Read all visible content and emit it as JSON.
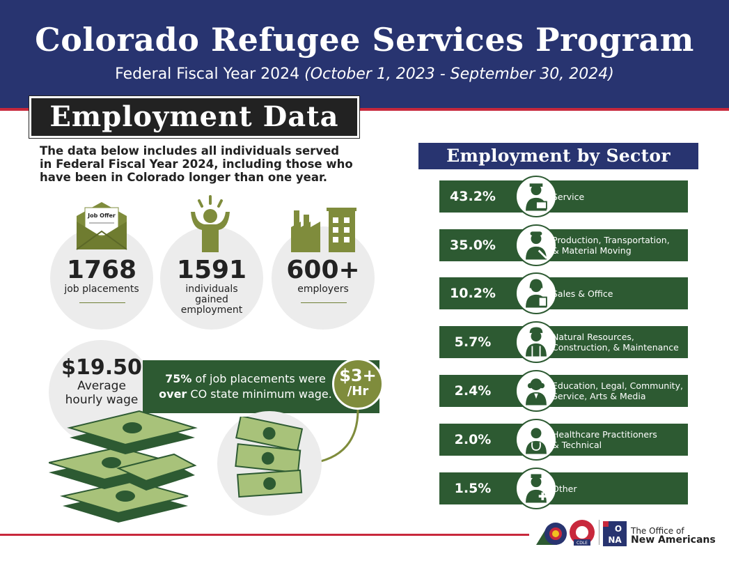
{
  "header": {
    "title": "Colorado Refugee Services Program",
    "subtitle_main": "Federal Fiscal Year 2024 ",
    "subtitle_dates": "(October 1, 2023 - September 30, 2024)"
  },
  "section_tag": "Employment Data",
  "intro_lines": [
    "The data below includes all individuals served",
    "in Federal Fiscal Year 2024, including those who",
    "have been in Colorado longer than one year."
  ],
  "stats": [
    {
      "value": "1768",
      "label_lines": [
        "job placements"
      ],
      "icon": "envelope-job-offer-icon",
      "icon_text": "Job Offer"
    },
    {
      "value": "1591",
      "label_lines": [
        "individuals",
        "gained",
        "employment"
      ],
      "icon": "celebrating-person-icon"
    },
    {
      "value": "600+",
      "label_lines": [
        "employers"
      ],
      "icon": "factory-buildings-icon"
    }
  ],
  "wage": {
    "amount": "$19.50",
    "label_lines": [
      "Average",
      "hourly wage"
    ]
  },
  "min_wage": {
    "pct": "75%",
    "text1": " of  job placements were",
    "bold": "over",
    "text2": " CO state minimum wage."
  },
  "badge": {
    "line1": "$3+",
    "line2": "/Hr"
  },
  "chart_data": {
    "type": "bar",
    "title": "Employment by Sector",
    "categories": [
      "Service",
      "Production, Transportation, & Material Moving",
      "Sales & Office",
      "Natural Resources, Construction, & Maintenance",
      "Education, Legal, Community, Service, Arts & Media",
      "Healthcare Practitioners & Technical",
      "Other"
    ],
    "values": [
      43.2,
      35.0,
      10.2,
      5.7,
      2.4,
      2.0,
      1.5
    ],
    "value_labels": [
      "43.2%",
      "35.0%",
      "10.2%",
      "5.7%",
      "2.4%",
      "2.0%",
      "1.5%"
    ],
    "label_lines": [
      [
        "Service"
      ],
      [
        "Production, Transportation,",
        "& Material Moving"
      ],
      [
        "Sales & Office"
      ],
      [
        "Natural Resources,",
        "Construction, & Maintenance"
      ],
      [
        "Education, Legal, Community,",
        "Service, Arts & Media"
      ],
      [
        "Healthcare Practitioners",
        "& Technical"
      ],
      [
        "Other"
      ]
    ],
    "icons": [
      "mail-carrier-icon",
      "mechanic-icon",
      "office-worker-icon",
      "construction-worker-icon",
      "judge-icon",
      "doctor-icon",
      "nurse-icon"
    ]
  },
  "footer": {
    "logo_badge": "CDLE",
    "ona_letters": "ONA",
    "office_line1": "The Office of",
    "office_line2": "New Americans"
  },
  "colors": {
    "navy": "#283470",
    "red": "#c8283c",
    "green": "#2d5a32",
    "olive": "#7f8c3c",
    "money_light": "#a8c27a"
  }
}
